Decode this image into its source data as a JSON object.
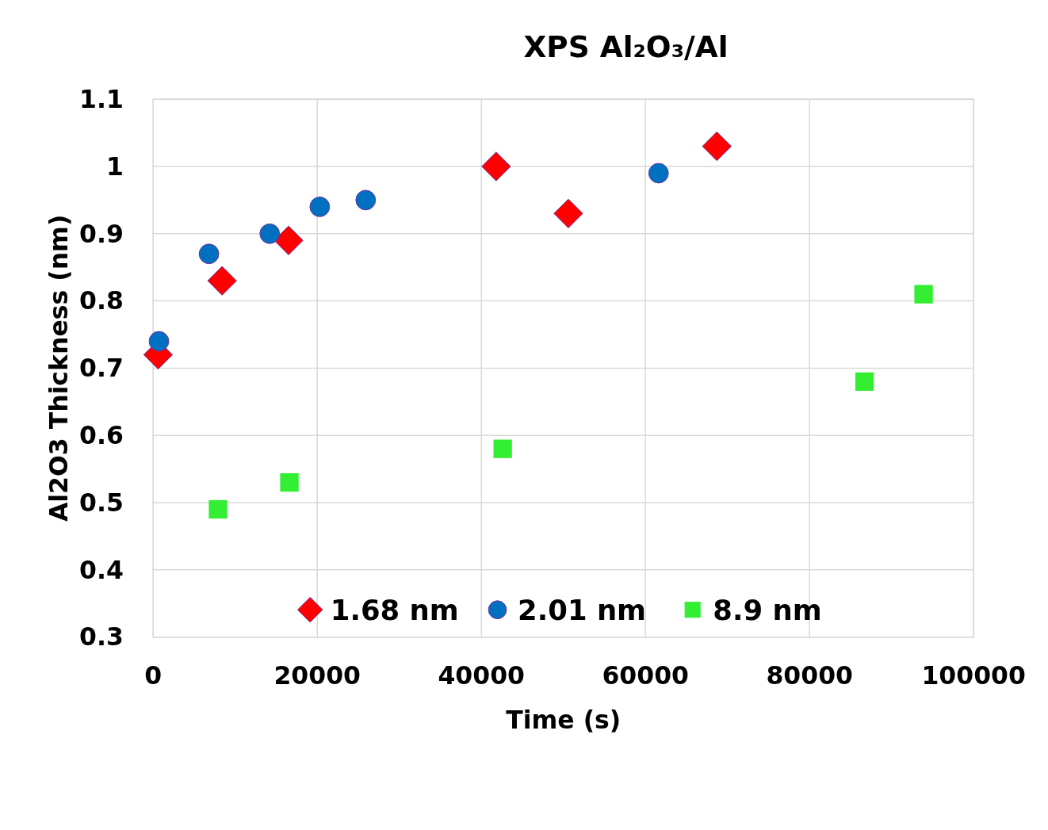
{
  "chart_data": {
    "type": "scatter",
    "title": "XPS Al₂O₃/Al",
    "xlabel": "Time (s)",
    "ylabel": "Al2O3 Thickness (nm)",
    "xlim": [
      0,
      100000
    ],
    "xticks": [
      0,
      20000,
      40000,
      60000,
      80000,
      100000
    ],
    "ylim": [
      0.3,
      1.1
    ],
    "yticks": [
      0.3,
      0.4,
      0.5,
      0.6,
      0.7,
      0.8,
      0.9,
      1,
      1.1
    ],
    "grid": true,
    "legend": "bottom",
    "series": [
      {
        "name": "1.68 nm",
        "color": "#ff0000",
        "marker": "diamond",
        "x": [
          600,
          8400,
          16500,
          41800,
          50600,
          68700
        ],
        "values": [
          0.72,
          0.83,
          0.89,
          1.0,
          0.93,
          1.03
        ]
      },
      {
        "name": "2.01 nm",
        "color": "#0070c0",
        "marker": "circle",
        "x": [
          700,
          6800,
          14200,
          20300,
          25900,
          61600
        ],
        "values": [
          0.74,
          0.87,
          0.9,
          0.94,
          0.95,
          0.99
        ]
      },
      {
        "name": "8.9 nm",
        "color": "#33ee33",
        "marker": "square",
        "x": [
          7900,
          16600,
          42600,
          86700,
          93900
        ],
        "values": [
          0.49,
          0.53,
          0.58,
          0.68,
          0.81
        ]
      }
    ]
  }
}
